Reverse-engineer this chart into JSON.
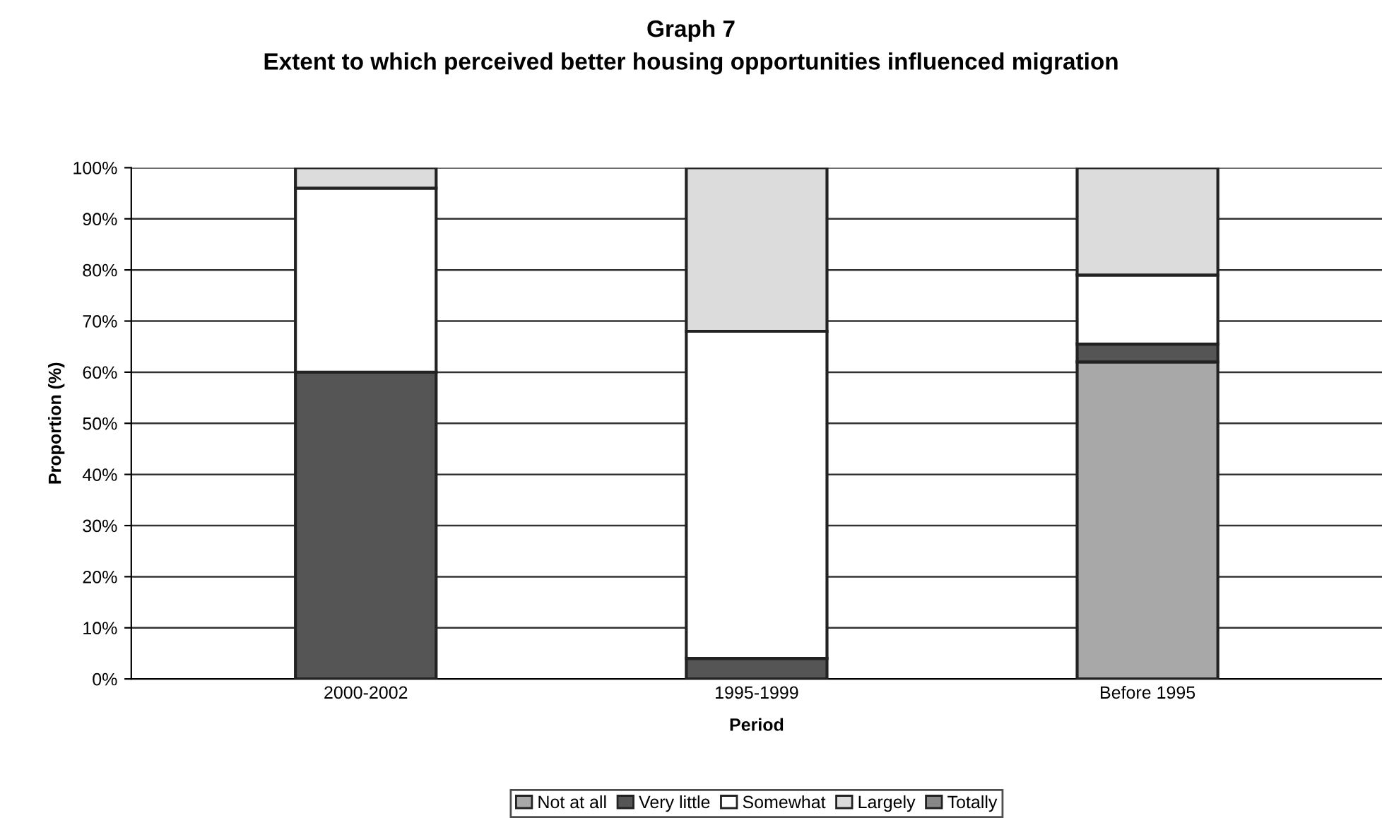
{
  "chart_data": {
    "type": "bar",
    "stacked": true,
    "title": "Graph 7",
    "subtitle": "Extent to which perceived better housing opportunities influenced migration",
    "xlabel": "Period",
    "ylabel": "Proportion (%)",
    "categories": [
      "2000-2002",
      "1995-1999",
      "Before 1995"
    ],
    "series": [
      {
        "name": "Not at all",
        "color": "#a8a8a8",
        "values": [
          0,
          0,
          62
        ]
      },
      {
        "name": "Very little",
        "color": "#555555",
        "values": [
          60,
          4,
          3.5
        ]
      },
      {
        "name": "Somewhat",
        "color": "#ffffff",
        "values": [
          36,
          64,
          13.5
        ]
      },
      {
        "name": "Largely",
        "color": "#dcdcdc",
        "values": [
          4,
          32,
          21
        ]
      },
      {
        "name": "Totally",
        "color": "#888888",
        "values": [
          0,
          0,
          0
        ]
      }
    ],
    "ylim": [
      0,
      100
    ],
    "yticks": [
      {
        "value": 0,
        "label": "0%"
      },
      {
        "value": 10,
        "label": "10%"
      },
      {
        "value": 20,
        "label": "20%"
      },
      {
        "value": 30,
        "label": "30%"
      },
      {
        "value": 40,
        "label": "40%"
      },
      {
        "value": 50,
        "label": "50%"
      },
      {
        "value": 60,
        "label": "60%"
      },
      {
        "value": 70,
        "label": "70%"
      },
      {
        "value": 80,
        "label": "80%"
      },
      {
        "value": 90,
        "label": "90%"
      },
      {
        "value": 100,
        "label": "100%"
      }
    ],
    "grid": "y",
    "legend": "bottom"
  }
}
